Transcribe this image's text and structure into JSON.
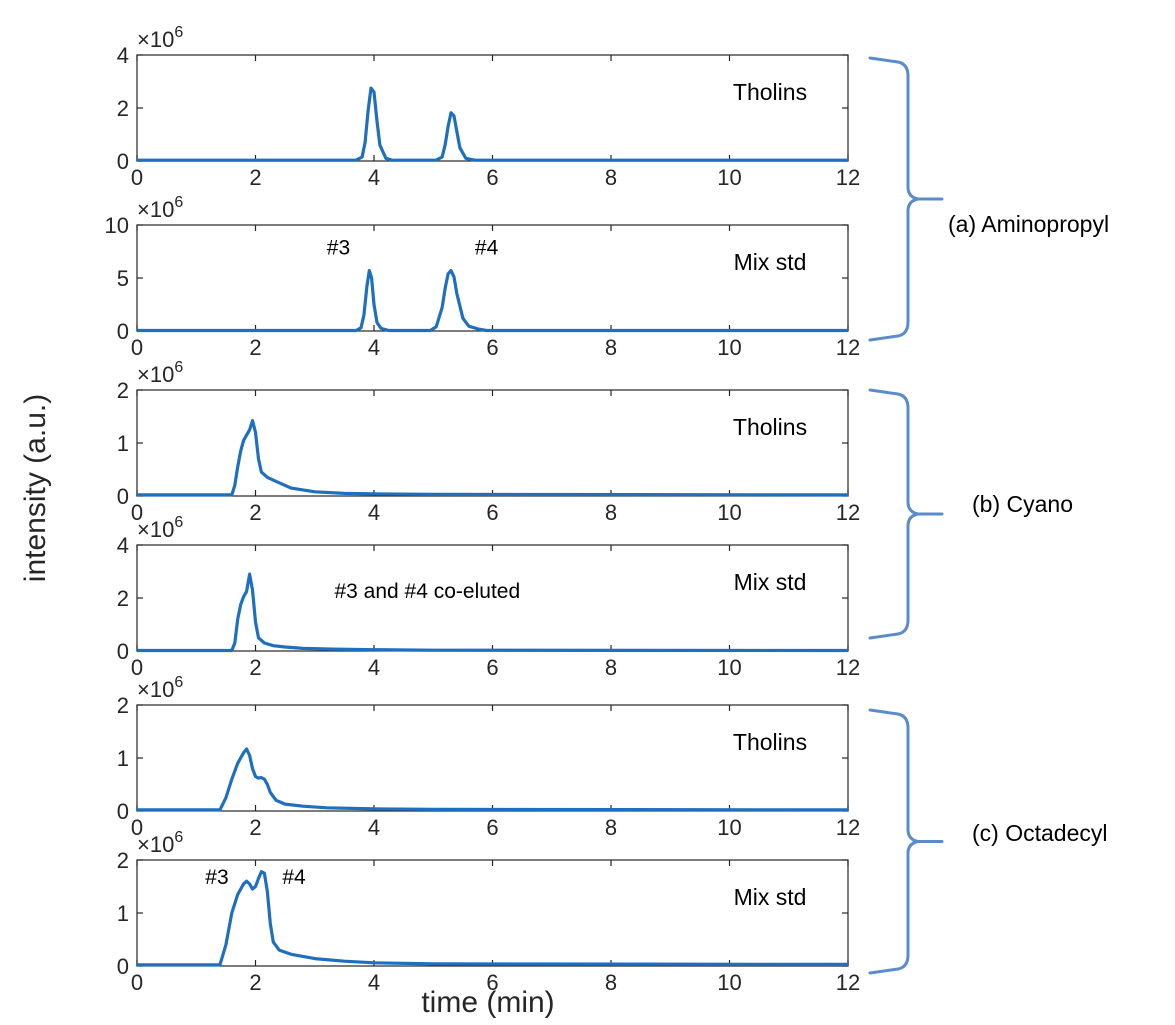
{
  "chart_data": {
    "type": "line",
    "xlabel": "time (min)",
    "ylabel": "intensity (a.u.)",
    "xlim": [
      0,
      12
    ],
    "xticks": [
      "0",
      "2",
      "4",
      "6",
      "8",
      "10",
      "12"
    ],
    "exponent_label": "×10",
    "exponent_power": "6",
    "line_color": "#1f6fc0",
    "brace_color": "#5a8ccc",
    "groups": [
      {
        "label": "(a)   Aminopropyl"
      },
      {
        "label": "(b) Cyano"
      },
      {
        "label": "(c) Octadecyl"
      }
    ],
    "panels": [
      {
        "sample": "Tholins",
        "yticks": [
          "0",
          "2",
          "4"
        ],
        "ylim": [
          0,
          4
        ],
        "annotations": [],
        "x": [
          0,
          3.7,
          3.8,
          3.85,
          3.9,
          3.95,
          4.0,
          4.05,
          4.1,
          4.2,
          4.3,
          5.05,
          5.15,
          5.2,
          5.25,
          5.3,
          5.35,
          5.4,
          5.45,
          5.55,
          5.7,
          12
        ],
        "y": [
          0.03,
          0.03,
          0.15,
          0.7,
          1.9,
          2.75,
          2.6,
          1.5,
          0.6,
          0.1,
          0.03,
          0.03,
          0.15,
          0.6,
          1.3,
          1.82,
          1.7,
          1.1,
          0.5,
          0.1,
          0.03,
          0.03
        ]
      },
      {
        "sample": "Mix std",
        "yticks": [
          "0",
          "5",
          "10"
        ],
        "ylim": [
          0,
          10
        ],
        "annotations": [
          "#3",
          "#4"
        ],
        "annotation_x": [
          3.4,
          5.9
        ],
        "annotation_y": [
          7.2,
          7.2
        ],
        "x": [
          0,
          3.7,
          3.78,
          3.83,
          3.88,
          3.92,
          3.96,
          4.0,
          4.05,
          4.12,
          4.25,
          4.95,
          5.05,
          5.15,
          5.2,
          5.25,
          5.3,
          5.35,
          5.4,
          5.5,
          5.6,
          5.75,
          5.9,
          12
        ],
        "y": [
          0.05,
          0.05,
          0.3,
          1.5,
          4.2,
          5.7,
          5.0,
          2.5,
          0.8,
          0.25,
          0.05,
          0.05,
          0.4,
          2.2,
          4.0,
          5.4,
          5.7,
          5.1,
          3.5,
          1.2,
          0.45,
          0.2,
          0.05,
          0.05
        ]
      },
      {
        "sample": "Tholins",
        "yticks": [
          "0",
          "1",
          "2"
        ],
        "ylim": [
          0,
          2
        ],
        "annotations": [],
        "x": [
          0,
          1.6,
          1.65,
          1.7,
          1.75,
          1.8,
          1.85,
          1.9,
          1.95,
          2.0,
          2.05,
          2.1,
          2.2,
          2.4,
          2.6,
          3.0,
          3.5,
          4.0,
          5.0,
          12
        ],
        "y": [
          0.02,
          0.02,
          0.2,
          0.55,
          0.85,
          1.05,
          1.15,
          1.25,
          1.42,
          1.2,
          0.7,
          0.45,
          0.35,
          0.25,
          0.15,
          0.08,
          0.05,
          0.04,
          0.03,
          0.02
        ]
      },
      {
        "sample": "Mix std",
        "yticks": [
          "0",
          "2",
          "4"
        ],
        "ylim": [
          0,
          4
        ],
        "annotations": [
          "#3 and #4 co-eluted"
        ],
        "annotation_x": [
          4.9
        ],
        "annotation_y": [
          2.0
        ],
        "x": [
          0,
          1.6,
          1.65,
          1.7,
          1.75,
          1.8,
          1.85,
          1.9,
          1.95,
          2.0,
          2.05,
          2.15,
          2.3,
          2.5,
          2.8,
          3.3,
          4.0,
          5.0,
          12
        ],
        "y": [
          0.02,
          0.02,
          0.3,
          1.2,
          1.75,
          2.05,
          2.25,
          2.9,
          2.3,
          1.1,
          0.5,
          0.3,
          0.2,
          0.15,
          0.1,
          0.07,
          0.05,
          0.03,
          0.02
        ]
      },
      {
        "sample": "Tholins",
        "yticks": [
          "0",
          "1",
          "2"
        ],
        "ylim": [
          0,
          2
        ],
        "annotations": [],
        "x": [
          0,
          1.4,
          1.5,
          1.6,
          1.7,
          1.8,
          1.85,
          1.9,
          1.95,
          2.0,
          2.05,
          2.1,
          2.15,
          2.2,
          2.25,
          2.35,
          2.5,
          2.8,
          3.2,
          4.0,
          5.0,
          12
        ],
        "y": [
          0.02,
          0.02,
          0.25,
          0.6,
          0.9,
          1.1,
          1.17,
          1.05,
          0.8,
          0.65,
          0.62,
          0.63,
          0.6,
          0.5,
          0.35,
          0.2,
          0.13,
          0.09,
          0.06,
          0.04,
          0.03,
          0.02
        ]
      },
      {
        "sample": "Mix std",
        "yticks": [
          "0",
          "1",
          "2"
        ],
        "ylim": [
          0,
          2
        ],
        "annotations": [
          "#3",
          "#4"
        ],
        "annotation_x": [
          1.35,
          2.65
        ],
        "annotation_y": [
          1.55,
          1.55
        ],
        "x": [
          0,
          1.4,
          1.5,
          1.6,
          1.7,
          1.8,
          1.85,
          1.9,
          1.95,
          2.0,
          2.05,
          2.1,
          2.15,
          2.2,
          2.25,
          2.3,
          2.4,
          2.6,
          3.0,
          3.5,
          4.0,
          5.0,
          12
        ],
        "y": [
          0.02,
          0.02,
          0.4,
          1.0,
          1.35,
          1.55,
          1.6,
          1.55,
          1.45,
          1.5,
          1.65,
          1.78,
          1.75,
          1.4,
          0.8,
          0.45,
          0.3,
          0.22,
          0.14,
          0.09,
          0.06,
          0.04,
          0.03
        ]
      }
    ]
  }
}
